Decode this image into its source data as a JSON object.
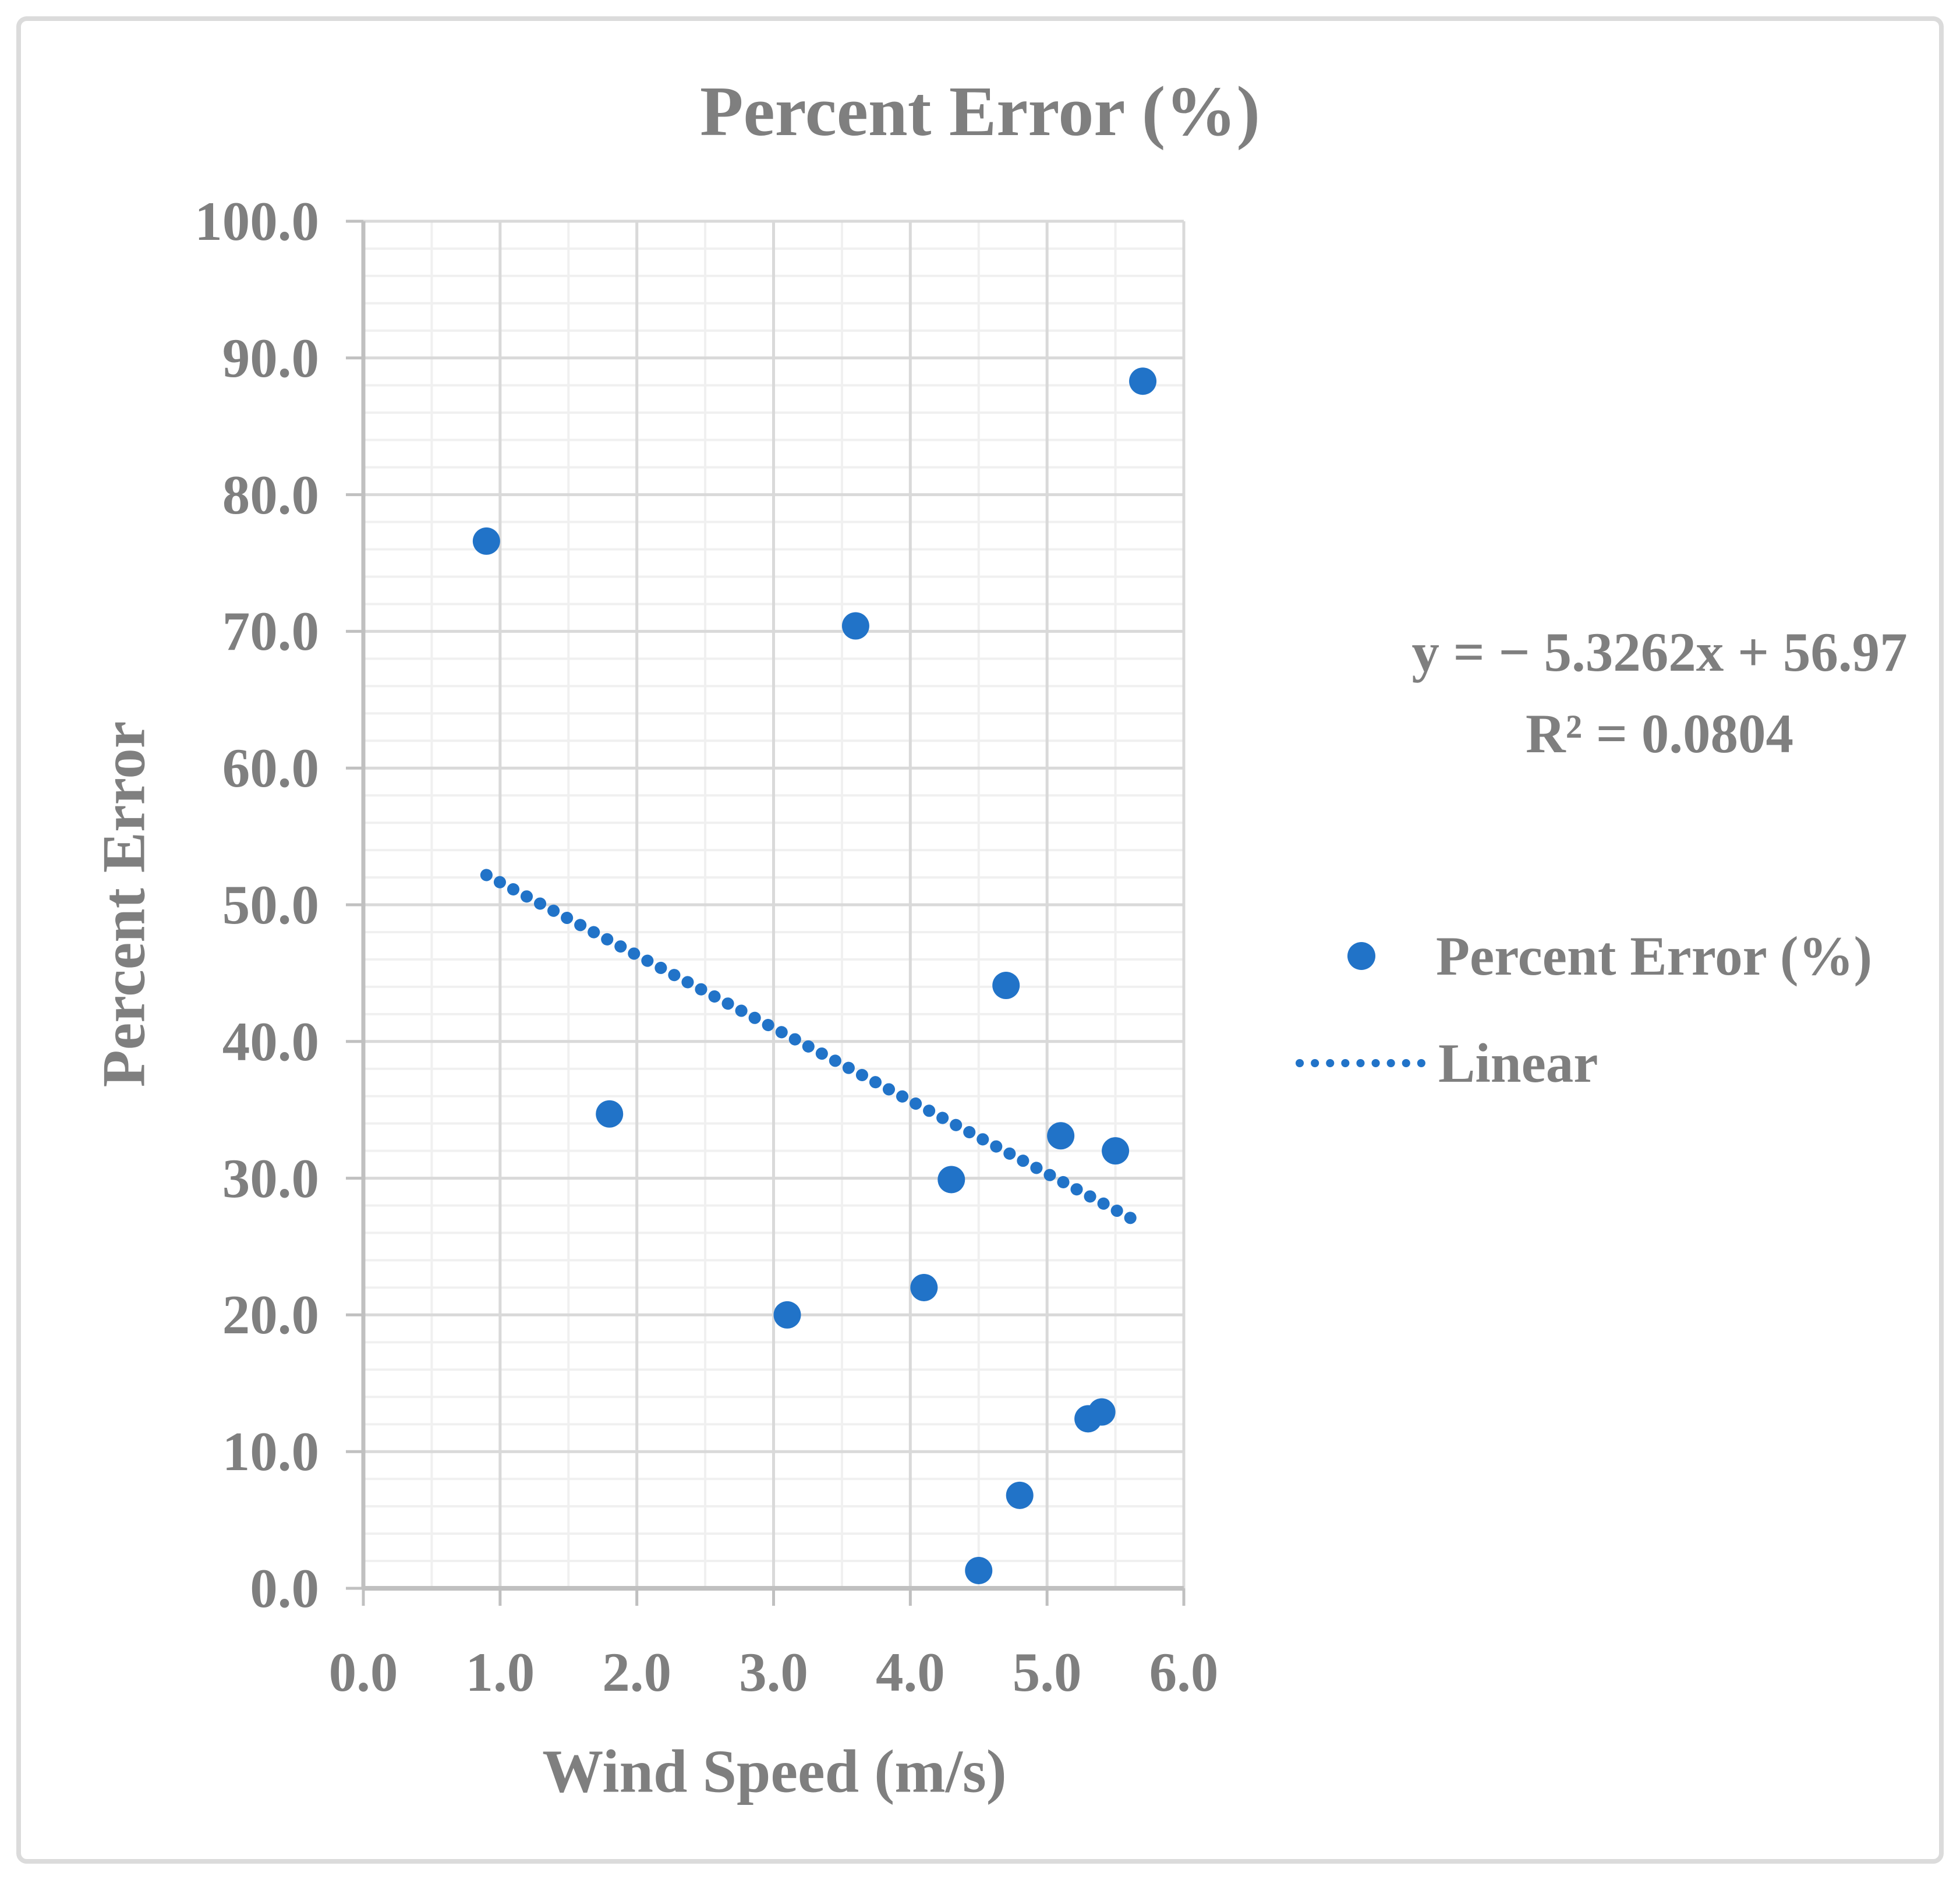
{
  "chart": {
    "title": "Percent Error (%)",
    "y_axis_title": "Percent Error",
    "x_axis_title": "Wind Speed (m/s)",
    "equation_line1": "y = − 5.3262x + 56.97",
    "equation_line2": "R² = 0.0804",
    "legend": [
      {
        "label": "Percent Error (%)",
        "marker": "dot-marker"
      },
      {
        "label": "Linear",
        "marker": "dotted-line-marker"
      }
    ]
  },
  "colors": {
    "accent_blue": "#2173C8",
    "text_gray": "#7f7f7f",
    "grid_major": "#d9d9d9",
    "grid_minor": "#f0f0f0",
    "axis_line": "#c0c0c0",
    "chart_border": "#dbdbdb"
  },
  "chart_data": {
    "type": "scatter",
    "title": "Percent Error (%)",
    "xlabel": "Wind Speed (m/s)",
    "ylabel": "Percent Error",
    "xlim": [
      0,
      6
    ],
    "ylim": [
      0,
      100
    ],
    "x_major_step": 1.0,
    "x_minor_step": 0.5,
    "y_major_step": 10,
    "y_minor_step": 2,
    "grid": true,
    "legend_position": "right",
    "x_tick_labels": [
      "0.0",
      "1.0",
      "2.0",
      "3.0",
      "4.0",
      "5.0",
      "6.0"
    ],
    "y_tick_labels": [
      "0.0",
      "10.0",
      "20.0",
      "30.0",
      "40.0",
      "50.0",
      "60.0",
      "70.0",
      "80.0",
      "90.0",
      "100.0"
    ],
    "series": [
      {
        "name": "Percent Error (%)",
        "color": "#2173C8",
        "points": [
          [
            0.9,
            76.6
          ],
          [
            1.8,
            34.7
          ],
          [
            3.1,
            20.0
          ],
          [
            3.6,
            70.4
          ],
          [
            4.1,
            22.0
          ],
          [
            4.3,
            29.9
          ],
          [
            4.5,
            1.3
          ],
          [
            4.7,
            44.1
          ],
          [
            4.8,
            6.8
          ],
          [
            5.1,
            33.1
          ],
          [
            5.3,
            12.4
          ],
          [
            5.4,
            12.9
          ],
          [
            5.5,
            32.0
          ],
          [
            5.7,
            88.3
          ]
        ]
      }
    ],
    "trendline": {
      "name": "Linear",
      "style": "dotted",
      "color": "#2173C8",
      "slope": -5.3262,
      "intercept": 56.97,
      "r_squared": 0.0804,
      "x_start": 0.9,
      "x_end": 5.7,
      "equation_text": "y = − 5.3262x + 56.97",
      "r_squared_text": "R² = 0.0804"
    }
  }
}
